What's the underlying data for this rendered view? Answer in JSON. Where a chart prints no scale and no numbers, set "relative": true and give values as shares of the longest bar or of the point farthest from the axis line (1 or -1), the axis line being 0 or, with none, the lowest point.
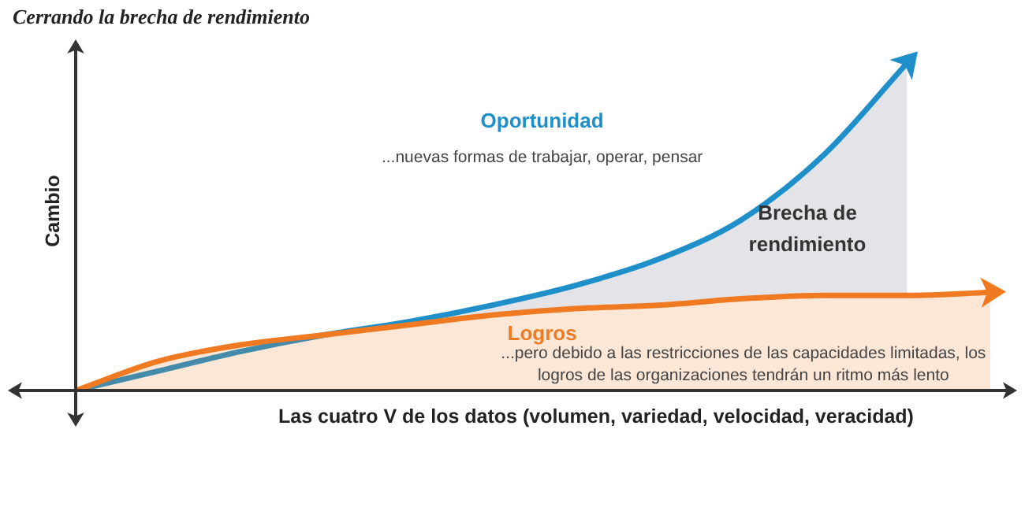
{
  "chart_data": {
    "type": "area",
    "title": "Cerrando la brecha de rendimiento",
    "xlabel": "Las cuatro V de los datos (volumen, variedad, velocidad, veracidad)",
    "ylabel": "Cambio",
    "relative": true,
    "legend": false,
    "marker": "none",
    "categories": [
      null,
      null,
      null,
      null,
      null,
      null,
      null,
      null,
      null,
      null,
      null,
      null
    ],
    "series": [
      {
        "name": "Oportunidad",
        "color": "#1f8fc9",
        "values": [
          0,
          0.06,
          0.12,
          0.17,
          0.21,
          0.26,
          0.32,
          0.4,
          0.52,
          0.72,
          1,
          null
        ]
      },
      {
        "name": "Logros",
        "color": "#f07a22",
        "values": [
          0,
          0.09,
          0.14,
          0.17,
          0.2,
          0.23,
          0.25,
          0.26,
          0.28,
          0.29,
          0.29,
          0.3
        ]
      }
    ],
    "annotations": [
      "...nuevas formas de trabajar, operar, pensar",
      "Brecha de rendimiento",
      "...pero debido a las restricciones de las capacidades limitadas, los logros de las organizaciones tendrán un ritmo más lento"
    ]
  }
}
